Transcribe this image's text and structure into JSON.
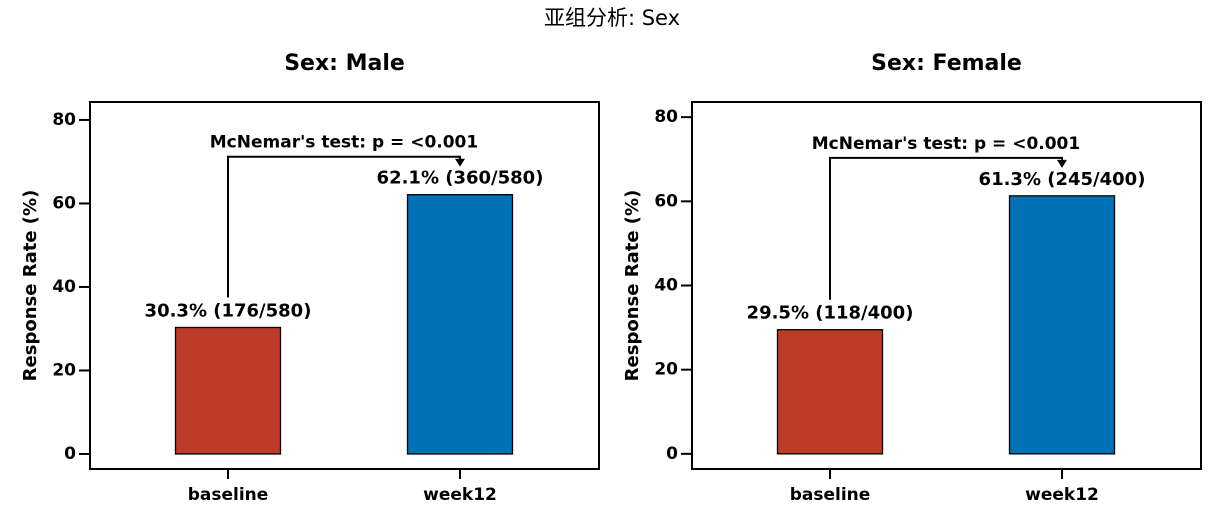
{
  "title": "亚组分析: Sex",
  "chart_data": [
    {
      "type": "bar",
      "title": "Sex: Male",
      "ylabel": "Response Rate (%)",
      "categories": [
        "baseline",
        "week12"
      ],
      "values": [
        30.3,
        62.1
      ],
      "value_labels": [
        "30.3% (176/580)",
        "62.1% (360/580)"
      ],
      "colors": [
        "#bc3c29",
        "#0072b5"
      ],
      "annotation": "McNemar's test: p = <0.001",
      "ylim": [
        -3.6,
        84.3
      ],
      "yticks": [
        0,
        20,
        40,
        60,
        80
      ]
    },
    {
      "type": "bar",
      "title": "Sex: Female",
      "ylabel": "Response Rate (%)",
      "categories": [
        "baseline",
        "week12"
      ],
      "values": [
        29.5,
        61.3
      ],
      "value_labels": [
        "29.5% (118/400)",
        "61.3% (245/400)"
      ],
      "colors": [
        "#bc3c29",
        "#0072b5"
      ],
      "annotation": "McNemar's test: p = <0.001",
      "ylim": [
        -3.6,
        83.6
      ],
      "yticks": [
        0,
        20,
        40,
        60,
        80
      ]
    }
  ]
}
